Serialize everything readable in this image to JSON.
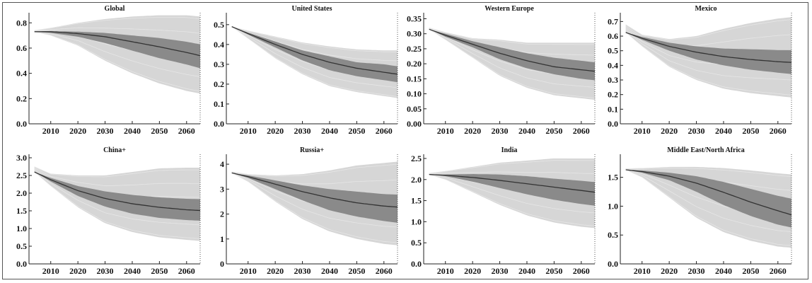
{
  "chart_data": [
    {
      "type": "area",
      "title": "Global",
      "x_ticks": [
        2010,
        2020,
        2030,
        2040,
        2050,
        2060
      ],
      "y_ticks": [
        "0.0",
        "0.2",
        "0.4",
        "0.6",
        "0.8"
      ],
      "ylim": [
        0,
        0.88
      ],
      "xlim": [
        2002,
        2065
      ],
      "series": [
        {
          "x": [
            2004,
            2010,
            2020,
            2030,
            2040,
            2050,
            2060,
            2065
          ],
          "median": [
            0.73,
            0.73,
            0.715,
            0.69,
            0.65,
            0.61,
            0.565,
            0.54
          ],
          "band_lo": [
            0.73,
            0.72,
            0.69,
            0.64,
            0.58,
            0.52,
            0.47,
            0.44
          ],
          "band_hi": [
            0.73,
            0.735,
            0.73,
            0.72,
            0.7,
            0.68,
            0.65,
            0.63
          ],
          "env_lo": [
            0.73,
            0.7,
            0.62,
            0.5,
            0.4,
            0.32,
            0.26,
            0.24
          ],
          "env_hi": [
            0.74,
            0.76,
            0.8,
            0.83,
            0.85,
            0.86,
            0.86,
            0.85
          ]
        }
      ]
    },
    {
      "type": "area",
      "title": "United States",
      "x_ticks": [
        2010,
        2020,
        2030,
        2040,
        2050,
        2060
      ],
      "y_ticks": [
        "0.0",
        "0.1",
        "0.2",
        "0.3",
        "0.4",
        "0.5"
      ],
      "ylim": [
        0,
        0.56
      ],
      "xlim": [
        2002,
        2065
      ],
      "series": [
        {
          "x": [
            2004,
            2010,
            2020,
            2030,
            2040,
            2050,
            2060,
            2065
          ],
          "median": [
            0.49,
            0.455,
            0.4,
            0.35,
            0.31,
            0.28,
            0.26,
            0.25
          ],
          "band_lo": [
            0.49,
            0.45,
            0.385,
            0.32,
            0.27,
            0.24,
            0.22,
            0.21
          ],
          "band_hi": [
            0.49,
            0.46,
            0.415,
            0.37,
            0.34,
            0.31,
            0.3,
            0.29
          ],
          "env_lo": [
            0.49,
            0.43,
            0.33,
            0.25,
            0.19,
            0.16,
            0.14,
            0.13
          ],
          "env_hi": [
            0.49,
            0.47,
            0.44,
            0.41,
            0.39,
            0.375,
            0.37,
            0.37
          ]
        }
      ]
    },
    {
      "type": "area",
      "title": "Western Europe",
      "x_ticks": [
        2010,
        2020,
        2030,
        2040,
        2050,
        2060
      ],
      "y_ticks": [
        "0.00",
        "0.05",
        "0.10",
        "0.15",
        "0.20",
        "0.25",
        "0.30",
        "0.35"
      ],
      "ylim": [
        0,
        0.37
      ],
      "xlim": [
        2002,
        2065
      ],
      "series": [
        {
          "x": [
            2004,
            2010,
            2020,
            2030,
            2040,
            2050,
            2060,
            2065
          ],
          "median": [
            0.315,
            0.295,
            0.265,
            0.235,
            0.21,
            0.19,
            0.18,
            0.175
          ],
          "band_lo": [
            0.315,
            0.29,
            0.255,
            0.215,
            0.185,
            0.165,
            0.15,
            0.145
          ],
          "band_hi": [
            0.315,
            0.3,
            0.275,
            0.255,
            0.235,
            0.22,
            0.21,
            0.205
          ],
          "env_lo": [
            0.315,
            0.28,
            0.22,
            0.16,
            0.12,
            0.095,
            0.085,
            0.08
          ],
          "env_hi": [
            0.32,
            0.305,
            0.285,
            0.28,
            0.27,
            0.27,
            0.27,
            0.27
          ]
        }
      ]
    },
    {
      "type": "area",
      "title": "Mexico",
      "x_ticks": [
        2010,
        2020,
        2030,
        2040,
        2050,
        2060
      ],
      "y_ticks": [
        "0.0",
        "0.1",
        "0.2",
        "0.3",
        "0.4",
        "0.5",
        "0.6",
        "0.7"
      ],
      "ylim": [
        0,
        0.76
      ],
      "xlim": [
        2002,
        2065
      ],
      "series": [
        {
          "x": [
            2004,
            2010,
            2020,
            2030,
            2040,
            2050,
            2060,
            2065
          ],
          "median": [
            0.625,
            0.585,
            0.53,
            0.49,
            0.46,
            0.44,
            0.425,
            0.42
          ],
          "band_lo": [
            0.625,
            0.575,
            0.5,
            0.44,
            0.4,
            0.37,
            0.35,
            0.34
          ],
          "band_hi": [
            0.625,
            0.595,
            0.555,
            0.53,
            0.515,
            0.51,
            0.505,
            0.505
          ],
          "env_lo": [
            0.625,
            0.53,
            0.39,
            0.3,
            0.24,
            0.21,
            0.19,
            0.18
          ],
          "env_hi": [
            0.68,
            0.61,
            0.58,
            0.6,
            0.65,
            0.69,
            0.72,
            0.73
          ]
        }
      ]
    },
    {
      "type": "area",
      "title": "China+",
      "x_ticks": [
        2010,
        2020,
        2030,
        2040,
        2050,
        2060
      ],
      "y_ticks": [
        "0.0",
        "0.5",
        "1.0",
        "1.5",
        "2.0",
        "2.5",
        "3.0"
      ],
      "ylim": [
        0,
        3.1
      ],
      "xlim": [
        2002,
        2065
      ],
      "series": [
        {
          "x": [
            2004,
            2010,
            2020,
            2030,
            2040,
            2050,
            2060,
            2065
          ],
          "median": [
            2.6,
            2.38,
            2.07,
            1.85,
            1.7,
            1.6,
            1.53,
            1.51
          ],
          "band_lo": [
            2.6,
            2.33,
            1.92,
            1.62,
            1.42,
            1.3,
            1.24,
            1.22
          ],
          "band_hi": [
            2.6,
            2.43,
            2.2,
            2.05,
            1.95,
            1.88,
            1.84,
            1.83
          ],
          "env_lo": [
            2.6,
            2.2,
            1.6,
            1.15,
            0.9,
            0.75,
            0.68,
            0.65
          ],
          "env_hi": [
            2.75,
            2.55,
            2.5,
            2.5,
            2.6,
            2.7,
            2.72,
            2.72
          ]
        }
      ]
    },
    {
      "type": "area",
      "title": "Russia+",
      "x_ticks": [
        2010,
        2020,
        2030,
        2040,
        2050,
        2060
      ],
      "y_ticks": [
        "0",
        "1",
        "2",
        "3",
        "4"
      ],
      "ylim": [
        0,
        4.4
      ],
      "xlim": [
        2002,
        2065
      ],
      "series": [
        {
          "x": [
            2004,
            2010,
            2020,
            2030,
            2040,
            2050,
            2060,
            2065
          ],
          "median": [
            3.65,
            3.5,
            3.2,
            2.9,
            2.65,
            2.45,
            2.32,
            2.28
          ],
          "band_lo": [
            3.65,
            3.45,
            3.0,
            2.55,
            2.15,
            1.9,
            1.72,
            1.65
          ],
          "band_hi": [
            3.65,
            3.55,
            3.35,
            3.15,
            3.0,
            2.9,
            2.8,
            2.78
          ],
          "env_lo": [
            3.65,
            3.3,
            2.5,
            1.8,
            1.3,
            1.0,
            0.8,
            0.75
          ],
          "env_hi": [
            3.7,
            3.6,
            3.55,
            3.6,
            3.75,
            3.95,
            4.05,
            4.1
          ]
        }
      ]
    },
    {
      "type": "area",
      "title": "India",
      "x_ticks": [
        2010,
        2020,
        2030,
        2040,
        2050,
        2060
      ],
      "y_ticks": [
        "0.0",
        "0.5",
        "1.0",
        "1.5",
        "2.0",
        "2.5"
      ],
      "ylim": [
        0,
        2.6
      ],
      "xlim": [
        2002,
        2065
      ],
      "series": [
        {
          "x": [
            2004,
            2010,
            2020,
            2030,
            2040,
            2050,
            2060,
            2065
          ],
          "median": [
            2.12,
            2.1,
            2.05,
            1.98,
            1.9,
            1.82,
            1.74,
            1.7
          ],
          "band_lo": [
            2.12,
            2.08,
            1.95,
            1.8,
            1.65,
            1.52,
            1.42,
            1.38
          ],
          "band_hi": [
            2.12,
            2.12,
            2.13,
            2.12,
            2.08,
            2.02,
            1.97,
            1.94
          ],
          "env_lo": [
            2.12,
            2.0,
            1.7,
            1.4,
            1.15,
            0.98,
            0.88,
            0.85
          ],
          "env_hi": [
            2.15,
            2.2,
            2.3,
            2.4,
            2.45,
            2.5,
            2.5,
            2.5
          ]
        }
      ]
    },
    {
      "type": "area",
      "title": "Middle East/North Africa",
      "x_ticks": [
        2010,
        2020,
        2030,
        2040,
        2050,
        2060
      ],
      "y_ticks": [
        "0.0",
        "0.5",
        "1.0",
        "1.5"
      ],
      "ylim": [
        0,
        1.9
      ],
      "xlim": [
        2002,
        2065
      ],
      "series": [
        {
          "x": [
            2004,
            2010,
            2020,
            2030,
            2040,
            2050,
            2060,
            2065
          ],
          "median": [
            1.63,
            1.6,
            1.52,
            1.4,
            1.24,
            1.07,
            0.92,
            0.85
          ],
          "band_lo": [
            1.63,
            1.58,
            1.45,
            1.25,
            1.02,
            0.83,
            0.68,
            0.63
          ],
          "band_hi": [
            1.63,
            1.62,
            1.58,
            1.52,
            1.42,
            1.3,
            1.18,
            1.13
          ],
          "env_lo": [
            1.63,
            1.5,
            1.15,
            0.8,
            0.55,
            0.4,
            0.3,
            0.28
          ],
          "env_hi": [
            1.65,
            1.66,
            1.68,
            1.68,
            1.66,
            1.62,
            1.57,
            1.55
          ]
        }
      ]
    }
  ]
}
